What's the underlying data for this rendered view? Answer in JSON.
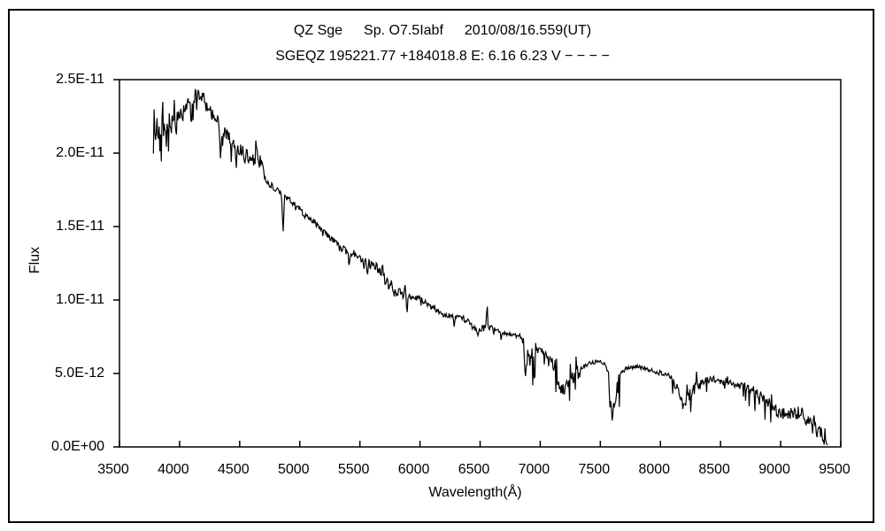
{
  "figure": {
    "background": "#ffffff",
    "line_color": "#000000",
    "title_line1_parts": [
      "QZ Sge",
      "Sp. O7.5Iabf",
      "2010/08/16.559(UT)"
    ],
    "title_line2": "SGEQZ 195221.77 +184018.8 E: 6.16 6.23 V − − − −"
  },
  "chart_data": {
    "type": "line",
    "title": "QZ Sge  Sp. O7.5Iabf  2010/08/16.559(UT)",
    "subtitle": "SGEQZ 195221.77 +184018.8 E: 6.16 6.23 V − − − −",
    "xlabel": "Wavelength(Å)",
    "ylabel": "Flux",
    "legend": "none",
    "grid": false,
    "xlim": [
      3500,
      9500
    ],
    "ylim": [
      0,
      25
    ],
    "flux_axis_unit": "1E-12",
    "x_tick_values": [
      3500,
      4000,
      4500,
      5000,
      5500,
      6000,
      6500,
      7000,
      7500,
      8000,
      8500,
      9000,
      9500
    ],
    "y_tick_values": [
      0,
      5,
      10,
      15,
      20,
      25
    ],
    "y_tick_labels": [
      "0.0E+00",
      "5.0E-12",
      "1.0E-11",
      "1.5E-11",
      "2.0E-11",
      "2.5E-11"
    ],
    "wavelength_range": [
      3782,
      9392
    ],
    "sample_step": 6,
    "noise_seed": 7,
    "continuum_anchors": [
      [
        3780,
        21.6
      ],
      [
        3820,
        21.7
      ],
      [
        3860,
        21.9
      ],
      [
        3900,
        22.1
      ],
      [
        3940,
        22.4
      ],
      [
        3980,
        22.7
      ],
      [
        4020,
        22.9
      ],
      [
        4060,
        23.2
      ],
      [
        4100,
        23.6
      ],
      [
        4130,
        24.0
      ],
      [
        4160,
        24.05
      ],
      [
        4200,
        23.8
      ],
      [
        4240,
        23.2
      ],
      [
        4280,
        22.7
      ],
      [
        4320,
        22.3
      ],
      [
        4360,
        21.5
      ],
      [
        4400,
        21.3
      ],
      [
        4440,
        21.0
      ],
      [
        4480,
        20.4
      ],
      [
        4520,
        20.1
      ],
      [
        4560,
        19.8
      ],
      [
        4600,
        19.6
      ],
      [
        4640,
        19.5
      ],
      [
        4680,
        19.4
      ],
      [
        4710,
        18.2
      ],
      [
        4760,
        17.8
      ],
      [
        4820,
        17.4
      ],
      [
        4860,
        17.1
      ],
      [
        4920,
        16.8
      ],
      [
        4980,
        16.3
      ],
      [
        5040,
        15.8
      ],
      [
        5100,
        15.4
      ],
      [
        5160,
        15.0
      ],
      [
        5220,
        14.5
      ],
      [
        5280,
        14.1
      ],
      [
        5340,
        13.6
      ],
      [
        5400,
        13.3
      ],
      [
        5460,
        13.2
      ],
      [
        5520,
        12.8
      ],
      [
        5580,
        12.5
      ],
      [
        5640,
        12.3
      ],
      [
        5700,
        11.6
      ],
      [
        5760,
        11.0
      ],
      [
        5820,
        10.6
      ],
      [
        5880,
        10.3
      ],
      [
        5940,
        10.2
      ],
      [
        6000,
        10.1
      ],
      [
        6060,
        9.7
      ],
      [
        6120,
        9.4
      ],
      [
        6180,
        9.1
      ],
      [
        6240,
        8.9
      ],
      [
        6300,
        8.8
      ],
      [
        6360,
        8.75
      ],
      [
        6420,
        8.4
      ],
      [
        6480,
        7.9
      ],
      [
        6540,
        8.2
      ],
      [
        6600,
        8.1
      ],
      [
        6660,
        7.9
      ],
      [
        6720,
        7.7
      ],
      [
        6780,
        7.65
      ],
      [
        6840,
        7.5
      ],
      [
        6880,
        6.2
      ],
      [
        6920,
        6.1
      ],
      [
        6970,
        6.5
      ],
      [
        7030,
        6.4
      ],
      [
        7090,
        6.1
      ],
      [
        7140,
        4.6
      ],
      [
        7190,
        4.0
      ],
      [
        7250,
        4.5
      ],
      [
        7310,
        5.0
      ],
      [
        7360,
        5.5
      ],
      [
        7420,
        5.7
      ],
      [
        7480,
        5.8
      ],
      [
        7540,
        5.7
      ],
      [
        7575,
        4.8
      ],
      [
        7600,
        2.2
      ],
      [
        7630,
        3.4
      ],
      [
        7665,
        5.0
      ],
      [
        7720,
        5.35
      ],
      [
        7780,
        5.45
      ],
      [
        7840,
        5.4
      ],
      [
        7900,
        5.3
      ],
      [
        7960,
        5.1
      ],
      [
        8020,
        5.0
      ],
      [
        8080,
        4.85
      ],
      [
        8140,
        4.2
      ],
      [
        8190,
        3.0
      ],
      [
        8240,
        3.5
      ],
      [
        8300,
        4.1
      ],
      [
        8360,
        4.45
      ],
      [
        8420,
        4.6
      ],
      [
        8480,
        4.5
      ],
      [
        8540,
        4.45
      ],
      [
        8600,
        4.3
      ],
      [
        8660,
        4.2
      ],
      [
        8720,
        4.0
      ],
      [
        8780,
        3.7
      ],
      [
        8840,
        3.35
      ],
      [
        8900,
        2.9
      ],
      [
        8960,
        2.5
      ],
      [
        9020,
        2.3
      ],
      [
        9080,
        2.2
      ],
      [
        9140,
        2.3
      ],
      [
        9200,
        2.0
      ],
      [
        9260,
        1.5
      ],
      [
        9320,
        1.0
      ],
      [
        9390,
        0.7
      ]
    ],
    "spectral_features": [
      {
        "center": 3835,
        "width": 7,
        "amp": -1.4
      },
      {
        "center": 3889,
        "width": 7,
        "amp": -1.5
      },
      {
        "center": 3970,
        "width": 7,
        "amp": -1.4
      },
      {
        "center": 4026,
        "width": 6,
        "amp": -0.7
      },
      {
        "center": 4102,
        "width": 7,
        "amp": -1.1
      },
      {
        "center": 4340,
        "width": 8,
        "amp": -2.3
      },
      {
        "center": 4430,
        "width": 7,
        "amp": -1.7
      },
      {
        "center": 4471,
        "width": 6,
        "amp": -1.2
      },
      {
        "center": 4542,
        "width": 5,
        "amp": -1.1
      },
      {
        "center": 4635,
        "width": 9,
        "amp": 1.7
      },
      {
        "center": 4861,
        "width": 9,
        "amp": -2.5
      },
      {
        "center": 5410,
        "width": 6,
        "amp": -1.2
      },
      {
        "center": 5562,
        "width": 6,
        "amp": -0.8
      },
      {
        "center": 5688,
        "width": 5,
        "amp": 0.7
      },
      {
        "center": 5740,
        "width": 5,
        "amp": -0.5
      },
      {
        "center": 5782,
        "width": 5,
        "amp": -0.7
      },
      {
        "center": 5860,
        "width": 5,
        "amp": -0.6
      },
      {
        "center": 5892,
        "width": 7,
        "amp": -1.0
      },
      {
        "center": 6284,
        "width": 5,
        "amp": -0.45
      },
      {
        "center": 6435,
        "width": 5,
        "amp": -0.3
      },
      {
        "center": 6478,
        "width": 6,
        "amp": -0.4
      },
      {
        "center": 6558,
        "width": 6,
        "amp": 1.5
      },
      {
        "center": 6613,
        "width": 4,
        "amp": -0.3
      },
      {
        "center": 6676,
        "width": 5,
        "amp": -0.55
      },
      {
        "center": 6875,
        "width": 8,
        "amp": -1.3
      },
      {
        "center": 7165,
        "width": 12,
        "amp": -0.5
      },
      {
        "center": 7597,
        "width": 9,
        "amp": -0.8
      },
      {
        "center": 8190,
        "width": 10,
        "amp": -0.3
      },
      {
        "center": 9183,
        "width": 7,
        "amp": 0.8
      }
    ],
    "noise_segments": [
      [
        3780,
        3960,
        1.0,
        0.18
      ],
      [
        3960,
        4150,
        0.5,
        0.08
      ],
      [
        4150,
        4400,
        0.4,
        0.06
      ],
      [
        4400,
        4700,
        0.45,
        0.05
      ],
      [
        4700,
        5320,
        0.22,
        0.03
      ],
      [
        5320,
        5900,
        0.28,
        0.04
      ],
      [
        5900,
        6520,
        0.2,
        0.03
      ],
      [
        6520,
        6860,
        0.16,
        0.02
      ],
      [
        6860,
        6965,
        0.75,
        0.1
      ],
      [
        6965,
        7120,
        0.28,
        0.03
      ],
      [
        7120,
        7330,
        0.5,
        0.08
      ],
      [
        7330,
        7570,
        0.14,
        0.01
      ],
      [
        7570,
        7660,
        0.65,
        0.12
      ],
      [
        7660,
        8100,
        0.16,
        0.02
      ],
      [
        8100,
        8310,
        0.4,
        0.06
      ],
      [
        8310,
        8700,
        0.26,
        0.04
      ],
      [
        8700,
        8960,
        0.42,
        0.06
      ],
      [
        8960,
        9200,
        0.48,
        0.07
      ],
      [
        9200,
        9400,
        0.55,
        0.12
      ]
    ]
  }
}
